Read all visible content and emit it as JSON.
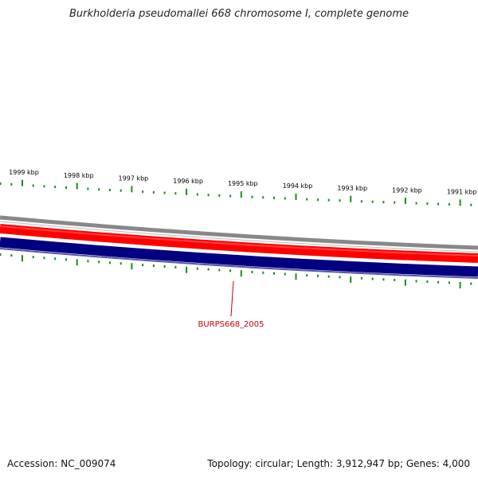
{
  "title": "Burkholderia pseudomallei 668 chromosome I, complete genome",
  "scale_labels": [
    "1999 kbp",
    "1998 kbp",
    "1997 kbp",
    "1996 kbp",
    "1995 kbp",
    "1994 kbp",
    "1993 kbp",
    "1992 kbp",
    "1991 kbp"
  ],
  "gene_label": "BURPS668_2005",
  "footer": {
    "accession": "Accession: NC_009074",
    "summary": "Topology: circular; Length: 3,912,947 bp; Genes: 4,000"
  },
  "colors": {
    "forward_strand": "#ff0000",
    "reverse_strand": "#000080",
    "tick": "#1a8a1a",
    "label_line": "#cc0000",
    "backbone": "#888888"
  }
}
